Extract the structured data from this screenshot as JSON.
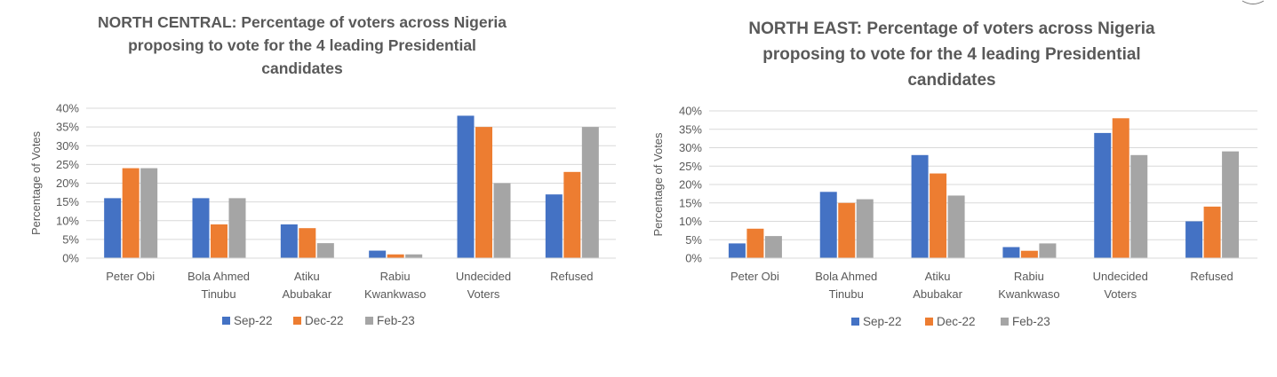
{
  "chart_data": [
    {
      "type": "bar",
      "title": "NORTH CENTRAL: Percentage of voters across Nigeria\nproposing to vote for the 4 leading Presidential\ncandidates",
      "xlabel": "",
      "ylabel": "Percentage of Votes",
      "categories": [
        "Peter Obi",
        "Bola Ahmed\nTinubu",
        "Atiku\nAbubakar",
        "Rabiu\nKwankwaso",
        "Undecided\nVoters",
        "Refused"
      ],
      "ylim": [
        0,
        40
      ],
      "yticks": [
        "0%",
        "5%",
        "10%",
        "15%",
        "20%",
        "25%",
        "30%",
        "35%",
        "40%"
      ],
      "grid": true,
      "legend_position": "bottom",
      "series": [
        {
          "name": "Sep-22",
          "color": "#4472C4",
          "values": [
            16,
            16,
            9,
            2,
            38,
            17
          ]
        },
        {
          "name": "Dec-22",
          "color": "#ED7D31",
          "values": [
            24,
            9,
            8,
            1,
            35,
            23
          ]
        },
        {
          "name": "Feb-23",
          "color": "#A5A5A5",
          "values": [
            24,
            16,
            4,
            1,
            20,
            35
          ]
        }
      ]
    },
    {
      "type": "bar",
      "title": "NORTH EAST: Percentage of voters across Nigeria\nproposing to vote for the 4 leading Presidential\ncandidates",
      "xlabel": "",
      "ylabel": "Percentage of Votes",
      "categories": [
        "Peter Obi",
        "Bola Ahmed\nTinubu",
        "Atiku\nAbubakar",
        "Rabiu\nKwankwaso",
        "Undecided\nVoters",
        "Refused"
      ],
      "ylim": [
        0,
        40
      ],
      "yticks": [
        "0%",
        "5%",
        "10%",
        "15%",
        "20%",
        "25%",
        "30%",
        "35%",
        "40%"
      ],
      "grid": true,
      "legend_position": "bottom",
      "series": [
        {
          "name": "Sep-22",
          "color": "#4472C4",
          "values": [
            4,
            18,
            28,
            3,
            34,
            10
          ]
        },
        {
          "name": "Dec-22",
          "color": "#ED7D31",
          "values": [
            8,
            15,
            23,
            2,
            38,
            14
          ]
        },
        {
          "name": "Feb-23",
          "color": "#A5A5A5",
          "values": [
            6,
            16,
            17,
            4,
            28,
            29
          ]
        }
      ]
    }
  ]
}
